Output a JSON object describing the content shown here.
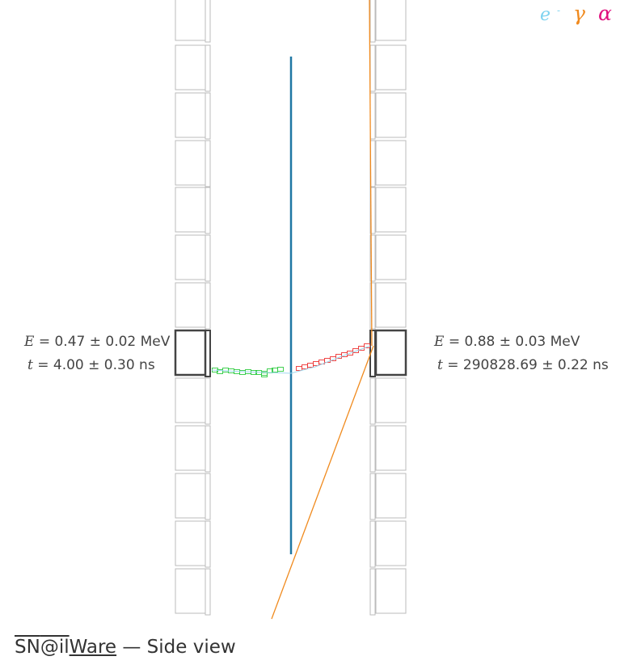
{
  "legend": {
    "electron_symbol": "e",
    "electron_charge": "-",
    "gamma_symbol": "γ",
    "alpha_symbol": "α"
  },
  "colors": {
    "electron": "#7fd3f0",
    "gamma": "#f08a1e",
    "alpha": "#e0107e",
    "source_foil": "#1f77a4",
    "track_left": "#2ecc40",
    "track_right": "#ee3333",
    "calorimeter_hit": "#333333",
    "calorimeter": "#bbbbbb"
  },
  "hits": {
    "left": {
      "energy_var": "E",
      "energy": "= 0.47 ± 0.02 MeV",
      "time_var": "t",
      "time": "= 4.00 ± 0.30 ns"
    },
    "right": {
      "energy_var": "E",
      "energy": "= 0.88 ± 0.03 MeV",
      "time_var": "t",
      "time": "= 290828.69 ± 0.22 ns"
    }
  },
  "footer": {
    "sn": "SN",
    "at": "@il",
    "ware": "Ware",
    "suffix": " — Side view"
  }
}
